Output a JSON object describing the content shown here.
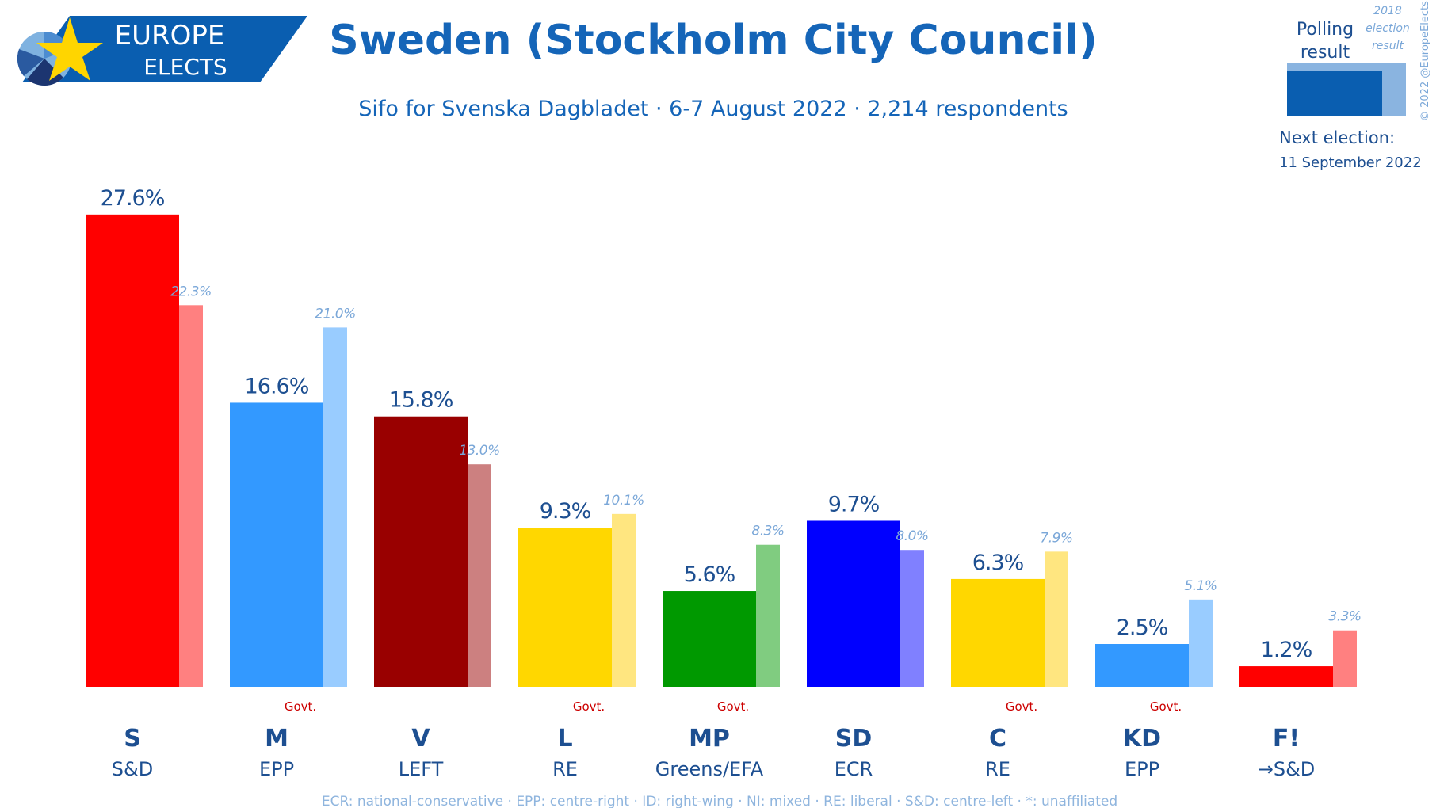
{
  "header": {
    "brand_line1": "EUROPE",
    "brand_line2": "ELECTS",
    "title": "Sweden (Stockholm City Council)",
    "subtitle": "Sifo for Svenska Dagbladet · 6-7 August 2022 · 2,214 respondents"
  },
  "legend": {
    "polling_line1": "Polling",
    "polling_line2": "result",
    "prev_line1": "2018",
    "prev_line2": "election",
    "prev_line3": "result",
    "copyright": "© 2022 @EuropeElects",
    "next_election_label": "Next election:",
    "next_election_date": "11 September 2022",
    "polling_color": "#0a5eb0",
    "prev_color": "#8ab4e0"
  },
  "govt_text": "Govt.",
  "chart_data": {
    "type": "bar",
    "ylim": [
      0,
      30
    ],
    "categories": [
      "S",
      "M",
      "V",
      "L",
      "MP",
      "SD",
      "C",
      "KD",
      "F!"
    ],
    "groups": [
      "S&D",
      "EPP",
      "LEFT",
      "RE",
      "Greens/EFA",
      "ECR",
      "RE",
      "EPP",
      "→S&D"
    ],
    "govt": [
      false,
      true,
      false,
      true,
      true,
      false,
      true,
      true,
      false
    ],
    "series": [
      {
        "name": "Polling result",
        "values": [
          27.6,
          16.6,
          15.8,
          9.3,
          5.6,
          9.7,
          6.3,
          2.5,
          1.2
        ],
        "labels": [
          "27.6%",
          "16.6%",
          "15.8%",
          "9.3%",
          "5.6%",
          "9.7%",
          "6.3%",
          "2.5%",
          "1.2%"
        ],
        "colors": [
          "#ff0000",
          "#3399ff",
          "#990000",
          "#ffd700",
          "#009900",
          "#0000ff",
          "#ffd700",
          "#3399ff",
          "#ff0000"
        ]
      },
      {
        "name": "2018 election result",
        "values": [
          22.3,
          21.0,
          13.0,
          10.1,
          8.3,
          8.0,
          7.9,
          5.1,
          3.3
        ],
        "labels": [
          "22.3%",
          "21.0%",
          "13.0%",
          "10.1%",
          "8.3%",
          "8.0%",
          "7.9%",
          "5.1%",
          "3.3%"
        ],
        "colors": [
          "#ff8080",
          "#99ccff",
          "#cc8080",
          "#ffe680",
          "#80cc80",
          "#8080ff",
          "#ffe680",
          "#99ccff",
          "#ff8080"
        ]
      }
    ]
  },
  "footer": {
    "text": "ECR: national-conservative · EPP: centre-right · ID: right-wing · NI: mixed · RE: liberal · S&D: centre-left · *: unaffiliated"
  }
}
